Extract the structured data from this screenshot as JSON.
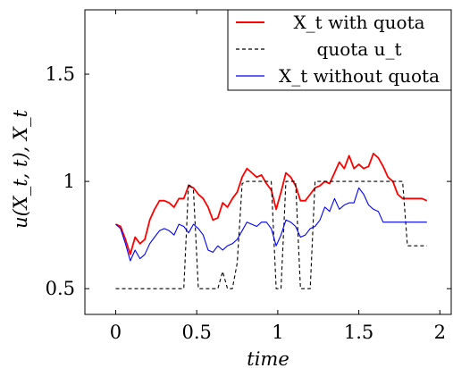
{
  "chart_data": {
    "type": "line",
    "xlabel": "time",
    "ylabel": "u(X_t, t),    X_t",
    "xlim": [
      -0.19,
      2.07
    ],
    "ylim": [
      0.38,
      1.8
    ],
    "xticks": [
      0,
      0.5,
      1,
      1.5,
      2
    ],
    "xtick_labels": [
      "0",
      "0.5",
      "1",
      "1.5",
      "2"
    ],
    "yticks": [
      0.5,
      1,
      1.5
    ],
    "ytick_labels": [
      "0.5",
      "1",
      "1.5"
    ],
    "grid": false,
    "legend_position": "top-right",
    "x": [
      0,
      0.03,
      0.06,
      0.09,
      0.12,
      0.15,
      0.18,
      0.21,
      0.24,
      0.27,
      0.3,
      0.33,
      0.36,
      0.39,
      0.42,
      0.45,
      0.48,
      0.51,
      0.54,
      0.57,
      0.6,
      0.63,
      0.66,
      0.69,
      0.72,
      0.75,
      0.78,
      0.81,
      0.84,
      0.87,
      0.9,
      0.93,
      0.96,
      0.99,
      1.02,
      1.05,
      1.08,
      1.11,
      1.14,
      1.17,
      1.2,
      1.23,
      1.26,
      1.29,
      1.32,
      1.35,
      1.38,
      1.41,
      1.44,
      1.47,
      1.5,
      1.53,
      1.56,
      1.59,
      1.62,
      1.65,
      1.68,
      1.71,
      1.74,
      1.77,
      1.8,
      1.83,
      1.86,
      1.89,
      1.92
    ],
    "series": [
      {
        "name": "X_t with quota",
        "color": "#ff0000",
        "dash": "solid",
        "values": [
          0.8,
          0.79,
          0.73,
          0.66,
          0.74,
          0.71,
          0.73,
          0.82,
          0.87,
          0.91,
          0.91,
          0.9,
          0.88,
          0.92,
          0.92,
          0.98,
          0.97,
          0.94,
          0.92,
          0.88,
          0.82,
          0.83,
          0.9,
          0.88,
          0.92,
          0.95,
          1.02,
          1.06,
          1.04,
          1.02,
          1.03,
          0.99,
          0.96,
          0.87,
          0.95,
          1.04,
          1.02,
          0.98,
          0.91,
          0.91,
          0.94,
          0.97,
          0.98,
          1.0,
          0.99,
          1.04,
          1.09,
          1.06,
          1.12,
          1.06,
          1.08,
          1.06,
          1.07,
          1.13,
          1.11,
          1.07,
          1.02,
          1.0,
          0.94,
          0.92,
          0.92,
          0.92,
          0.92,
          0.92,
          0.91
        ]
      },
      {
        "name": "quota u_t",
        "color": "#000000",
        "dash": "dashed",
        "values": [
          0.5,
          0.5,
          0.5,
          0.5,
          0.5,
          0.5,
          0.5,
          0.5,
          0.5,
          0.5,
          0.5,
          0.5,
          0.5,
          0.5,
          0.5,
          0.99,
          0.96,
          0.5,
          0.5,
          0.5,
          0.5,
          0.5,
          0.58,
          0.5,
          0.5,
          0.62,
          0.99,
          1.0,
          1.0,
          1.0,
          1.0,
          1.0,
          1.0,
          0.5,
          0.5,
          1.0,
          1.0,
          1.0,
          0.5,
          0.5,
          0.5,
          1.0,
          1.0,
          1.0,
          1.0,
          1.0,
          1.0,
          1.0,
          1.0,
          1.0,
          1.0,
          1.0,
          1.0,
          1.0,
          1.0,
          1.0,
          1.0,
          1.0,
          1.0,
          1.0,
          0.7,
          0.7,
          0.7,
          0.7,
          0.7
        ]
      },
      {
        "name": "X_t without quota",
        "color": "#0000ff",
        "dash": "solid",
        "values": [
          0.8,
          0.78,
          0.71,
          0.63,
          0.68,
          0.64,
          0.66,
          0.71,
          0.74,
          0.77,
          0.78,
          0.77,
          0.75,
          0.8,
          0.79,
          0.76,
          0.8,
          0.78,
          0.75,
          0.68,
          0.67,
          0.7,
          0.68,
          0.7,
          0.71,
          0.73,
          0.77,
          0.81,
          0.8,
          0.79,
          0.81,
          0.81,
          0.78,
          0.7,
          0.75,
          0.82,
          0.81,
          0.79,
          0.74,
          0.75,
          0.78,
          0.79,
          0.82,
          0.88,
          0.86,
          0.92,
          0.87,
          0.89,
          0.9,
          0.9,
          0.97,
          0.94,
          0.89,
          0.87,
          0.86,
          0.81,
          0.81,
          0.81,
          0.81,
          0.81,
          0.81,
          0.81,
          0.81,
          0.81,
          0.81
        ]
      }
    ]
  }
}
